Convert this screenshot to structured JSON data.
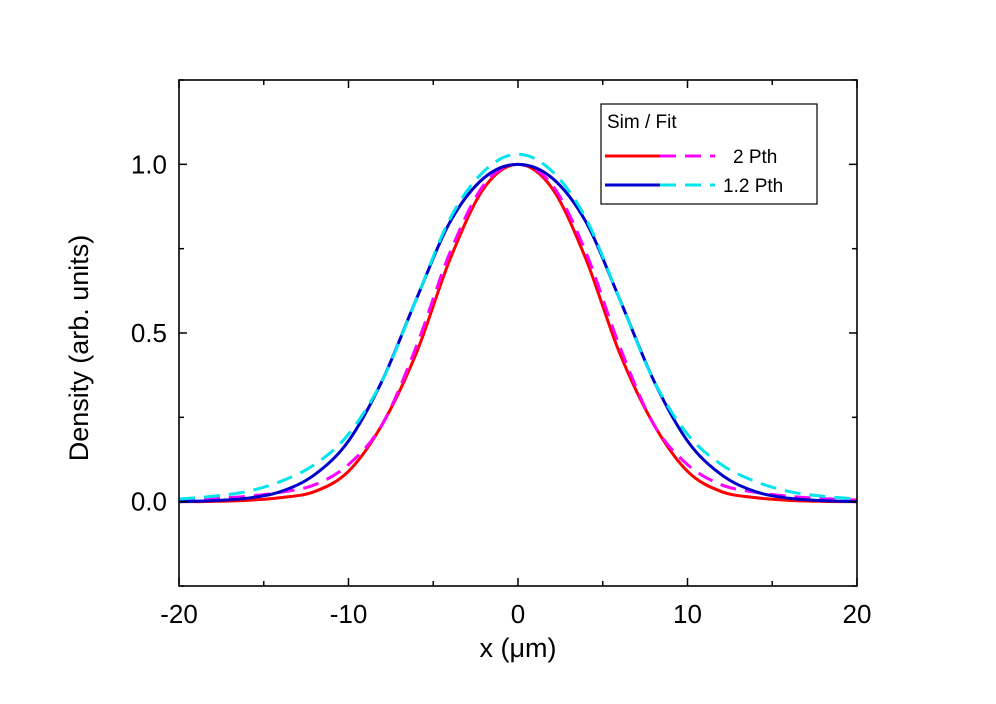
{
  "chart_data": {
    "type": "line",
    "xlabel": "x (μm)",
    "ylabel": "Density (arb. units)",
    "xlim": [
      -20,
      20
    ],
    "ylim": [
      -0.25,
      1.25
    ],
    "xticks": [
      -20,
      -10,
      0,
      10,
      20
    ],
    "xtick_labels": [
      "-20",
      "-10",
      "0",
      "10",
      "20"
    ],
    "yticks": [
      0.0,
      0.5,
      1.0
    ],
    "ytick_labels": [
      "0.0",
      "0.5",
      "1.0"
    ],
    "grid": false,
    "legend": {
      "title": "Sim / Fit",
      "placement": "top-right",
      "entries": [
        "2 Pth",
        "1.2 Pth"
      ]
    },
    "x": [
      -20,
      -18,
      -16,
      -14,
      -12,
      -10,
      -8,
      -6,
      -4,
      -2,
      0,
      2,
      4,
      6,
      8,
      10,
      12,
      14,
      16,
      18,
      20
    ],
    "series": [
      {
        "name": "2 Pth",
        "role": "simulation",
        "style": "solid",
        "color": "#ff0000",
        "values": [
          0.0,
          0.001,
          0.004,
          0.012,
          0.03,
          0.09,
          0.23,
          0.44,
          0.72,
          0.93,
          1.0,
          0.93,
          0.72,
          0.44,
          0.23,
          0.09,
          0.03,
          0.012,
          0.004,
          0.001,
          0.0
        ]
      },
      {
        "name": "2 Pth",
        "role": "fit",
        "style": "dashed",
        "color": "#ff00ff",
        "values": [
          0.005,
          0.009,
          0.016,
          0.028,
          0.05,
          0.11,
          0.23,
          0.46,
          0.74,
          0.94,
          1.0,
          0.94,
          0.74,
          0.46,
          0.23,
          0.11,
          0.05,
          0.028,
          0.016,
          0.009,
          0.005
        ]
      },
      {
        "name": "1.2 Pth",
        "role": "simulation",
        "style": "solid",
        "color": "#0000cc",
        "values": [
          0.0,
          0.003,
          0.01,
          0.03,
          0.08,
          0.18,
          0.36,
          0.6,
          0.83,
          0.96,
          1.0,
          0.96,
          0.83,
          0.6,
          0.36,
          0.18,
          0.08,
          0.03,
          0.01,
          0.003,
          0.0
        ]
      },
      {
        "name": "1.2 Pth",
        "role": "fit",
        "style": "dashed",
        "color": "#00e5ee",
        "values": [
          0.008,
          0.016,
          0.03,
          0.06,
          0.11,
          0.2,
          0.36,
          0.6,
          0.84,
          0.98,
          1.03,
          0.98,
          0.84,
          0.6,
          0.36,
          0.2,
          0.11,
          0.06,
          0.03,
          0.016,
          0.008
        ]
      }
    ]
  }
}
